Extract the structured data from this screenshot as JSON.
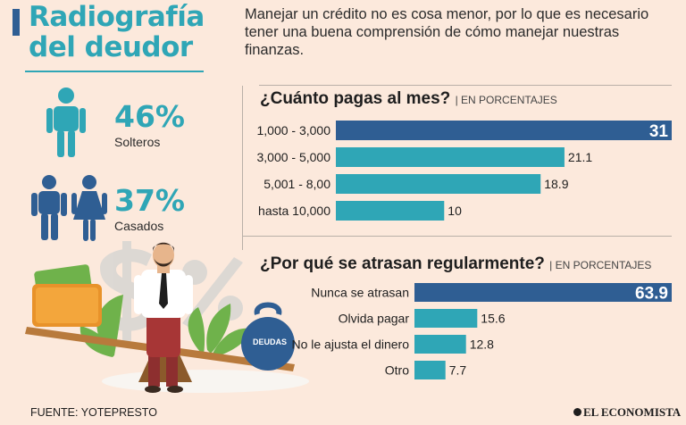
{
  "title": "Radiografía del deudor",
  "intro": "Manejar un crédito no es cosa menor, por lo que es necesario tener una buena comprensión de cómo manejar nuestras finanzas.",
  "stats": [
    {
      "value": "46%",
      "label": "Solteros"
    },
    {
      "value": "37%",
      "label": "Casados"
    }
  ],
  "illustration": {
    "weight_label": "DEUDAS"
  },
  "chart_data": [
    {
      "type": "bar",
      "orientation": "horizontal",
      "title": "¿Cuánto pagas al mes?",
      "subtitle": "| EN PORCENTAJES",
      "categories": [
        "1,000 - 3,000",
        "3,000 - 5,000",
        "5,001 - 8,00",
        "hasta 10,000"
      ],
      "values": [
        31,
        21.1,
        18.9,
        10
      ],
      "value_labels": [
        "31",
        "21.1",
        "18.9",
        "10"
      ],
      "highlight_index": 0,
      "xlim": [
        0,
        31
      ]
    },
    {
      "type": "bar",
      "orientation": "horizontal",
      "title": "¿Por qué se atrasan regularmente?",
      "subtitle": "| EN PORCENTAJES",
      "categories": [
        "Nunca se atrasan",
        "Olvida pagar",
        "No le ajusta el dinero",
        "Otro"
      ],
      "values": [
        63.9,
        15.6,
        12.8,
        7.7
      ],
      "value_labels": [
        "63.9",
        "15.6",
        "12.8",
        "7.7"
      ],
      "highlight_index": 0,
      "xlim": [
        0,
        63.9
      ]
    }
  ],
  "colors": {
    "highlight": "#2f5e93",
    "bar": "#2fa6b6",
    "accent": "#2fa6b6",
    "background": "#fce9dc"
  },
  "source": "FUENTE: YOTEPRESTO",
  "brand": "EL ECONOMISTA"
}
